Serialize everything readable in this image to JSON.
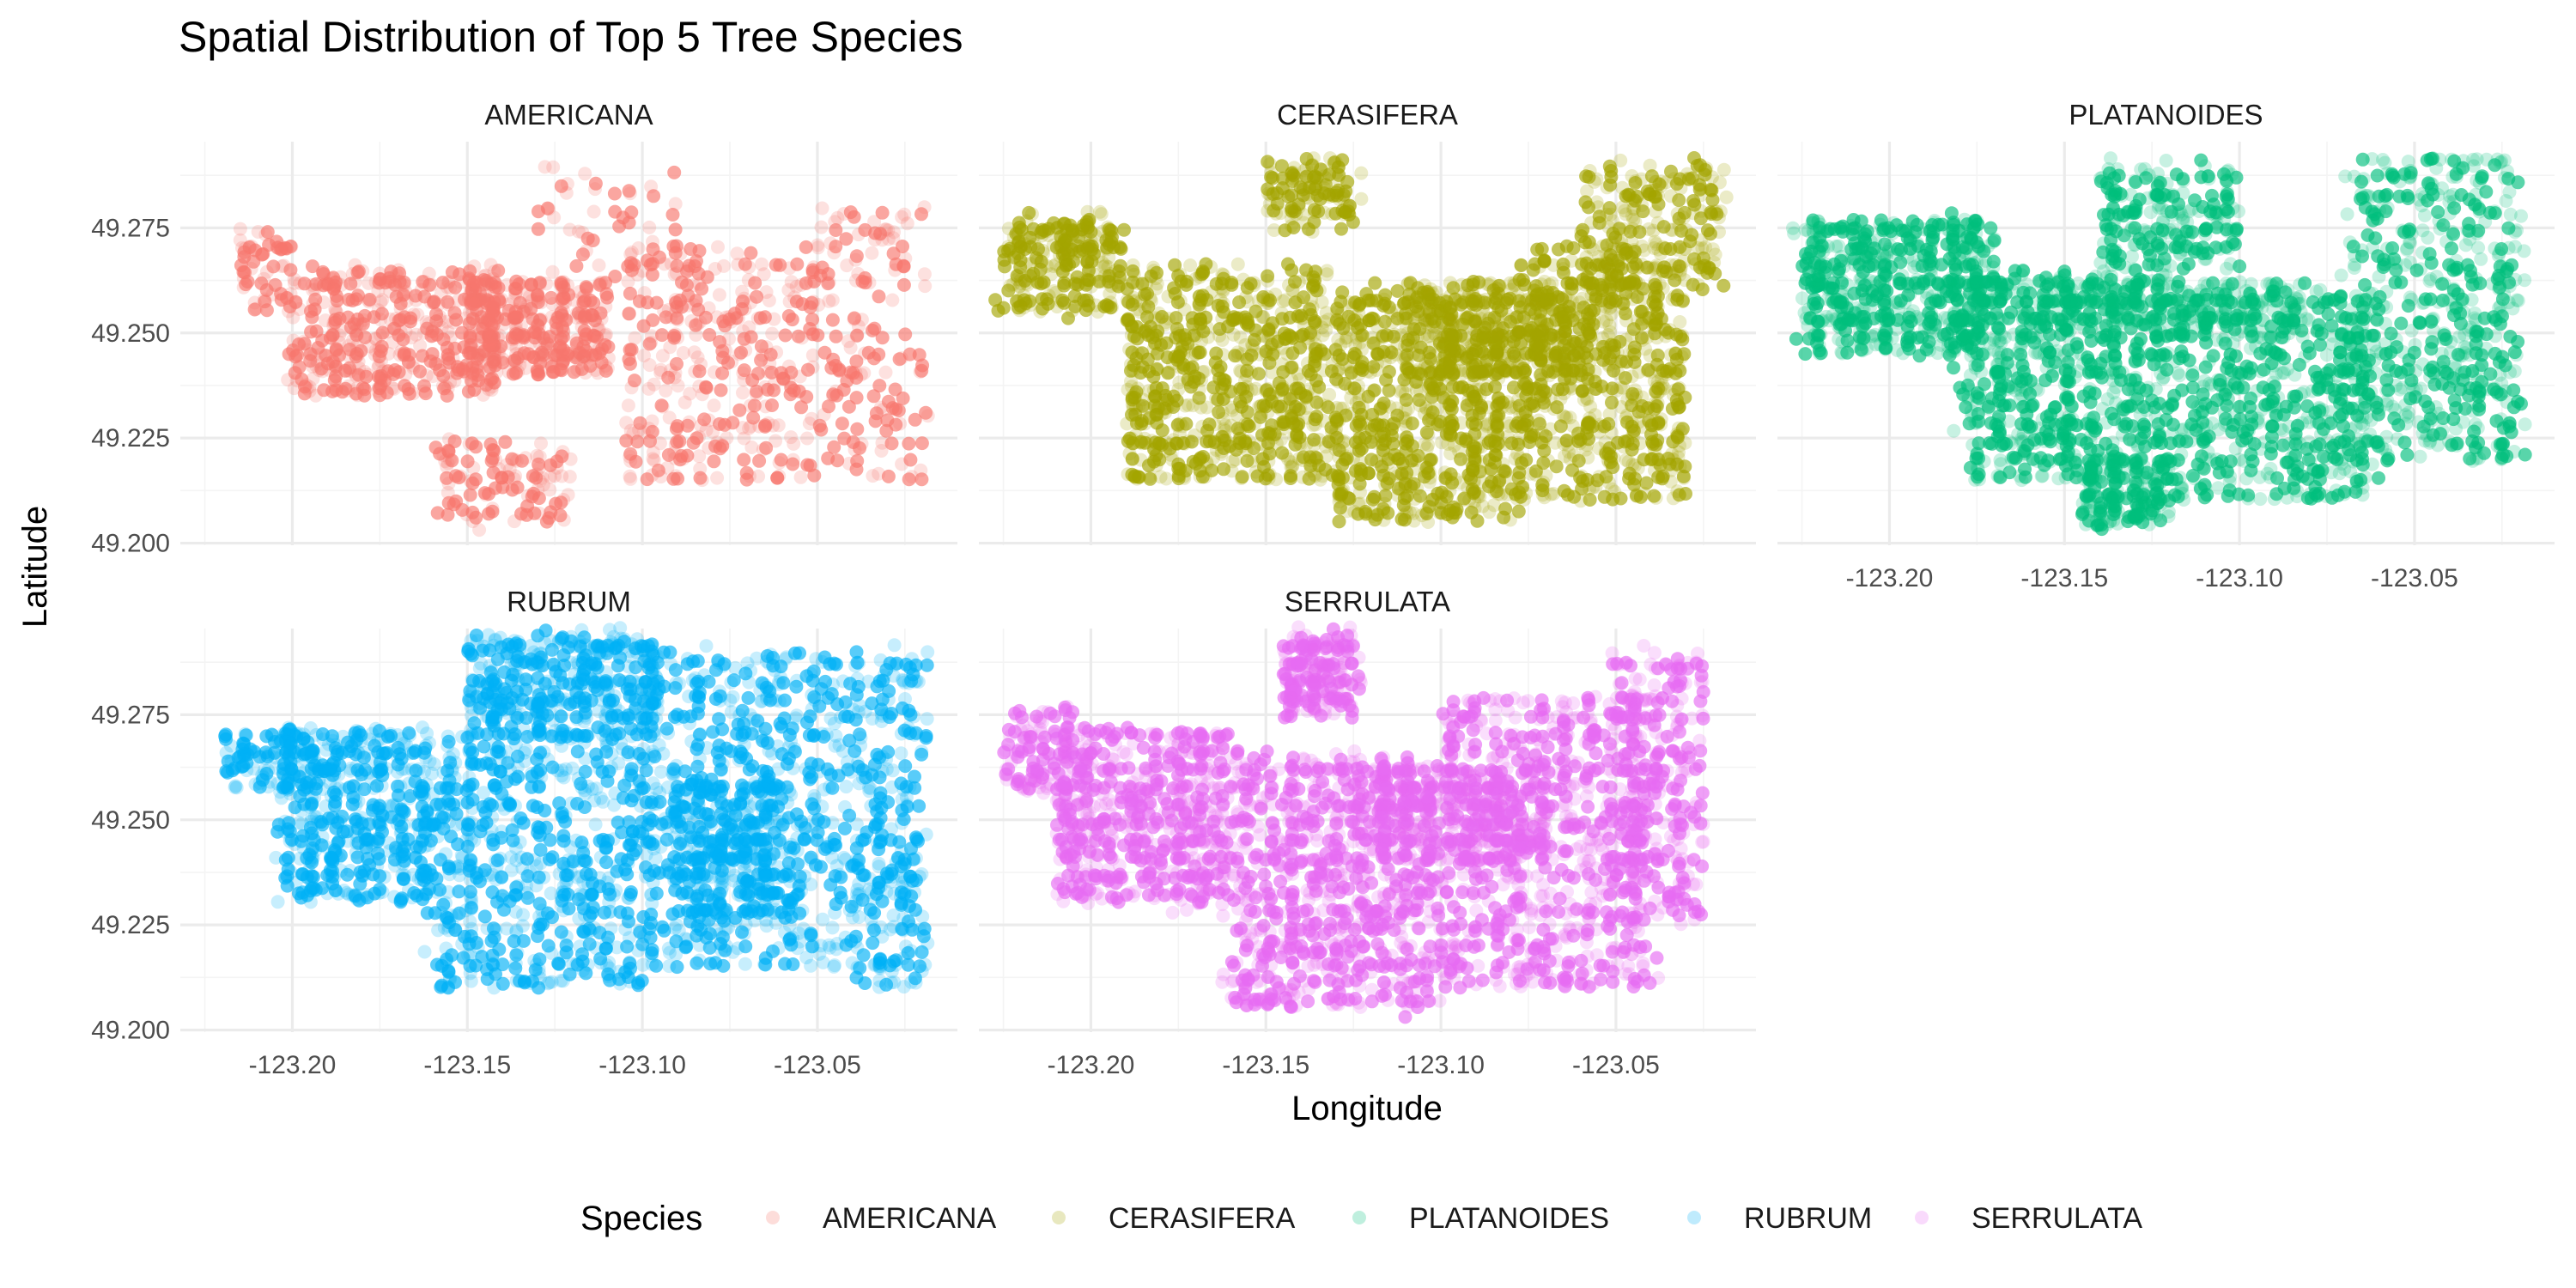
{
  "chart_data": {
    "type": "scatter",
    "title": "Spatial Distribution of Top 5 Tree Species",
    "xlabel": "Longitude",
    "ylabel": "Latitude",
    "xlim": [
      -123.232,
      -123.01
    ],
    "ylim": [
      49.1995,
      49.2955
    ],
    "x_ticks": [
      -123.2,
      -123.15,
      -123.1,
      -123.05
    ],
    "x_tick_labels": [
      "-123.20",
      "-123.15",
      "-123.10",
      "-123.05"
    ],
    "y_ticks": [
      49.2,
      49.225,
      49.25,
      49.275
    ],
    "y_tick_labels": [
      "49.200",
      "49.225",
      "49.250",
      "49.275"
    ],
    "grid": true,
    "facet_layout": {
      "rows": 2,
      "cols": 3
    },
    "legend": {
      "title": "Species",
      "position": "bottom"
    },
    "series": [
      {
        "name": "AMERICANA",
        "color": "#F8766D",
        "point_count": 1500,
        "regions": [
          [
            -123.2,
            -123.14,
            49.235,
            49.265,
            0.28
          ],
          [
            -123.15,
            -123.11,
            49.24,
            49.262,
            0.22
          ],
          [
            -123.105,
            -123.05,
            49.215,
            49.27,
            0.22
          ],
          [
            -123.05,
            -123.02,
            49.215,
            49.28,
            0.12
          ],
          [
            -123.16,
            -123.12,
            49.205,
            49.225,
            0.08
          ],
          [
            -123.215,
            -123.2,
            49.255,
            49.275,
            0.04
          ],
          [
            -123.13,
            -123.09,
            49.262,
            49.29,
            0.04
          ]
        ]
      },
      {
        "name": "CERASIFERA",
        "color": "#A3A500",
        "point_count": 3000,
        "regions": [
          [
            -123.19,
            -123.13,
            49.215,
            49.265,
            0.24
          ],
          [
            -123.13,
            -123.08,
            49.205,
            49.26,
            0.24
          ],
          [
            -123.08,
            -123.03,
            49.21,
            49.27,
            0.22
          ],
          [
            -123.06,
            -123.02,
            49.26,
            49.29,
            0.08
          ],
          [
            -123.225,
            -123.19,
            49.255,
            49.277,
            0.08
          ],
          [
            -123.15,
            -123.125,
            49.275,
            49.292,
            0.04
          ],
          [
            -123.11,
            -123.06,
            49.24,
            49.262,
            0.1
          ]
        ]
      },
      {
        "name": "PLATANOIDES",
        "color": "#00BF7D",
        "point_count": 3000,
        "regions": [
          [
            -123.225,
            -123.17,
            49.245,
            49.277,
            0.2
          ],
          [
            -123.18,
            -123.12,
            49.215,
            49.265,
            0.22
          ],
          [
            -123.12,
            -123.06,
            49.21,
            49.26,
            0.2
          ],
          [
            -123.07,
            -123.02,
            49.22,
            49.292,
            0.16
          ],
          [
            -123.145,
            -123.12,
            49.204,
            49.22,
            0.06
          ],
          [
            -123.14,
            -123.1,
            49.265,
            49.29,
            0.08
          ],
          [
            -123.16,
            -123.08,
            49.25,
            49.262,
            0.08
          ]
        ]
      },
      {
        "name": "RUBRUM",
        "color": "#00B0F6",
        "point_count": 2800,
        "regions": [
          [
            -123.205,
            -123.16,
            49.23,
            49.272,
            0.16
          ],
          [
            -123.16,
            -123.1,
            49.21,
            49.27,
            0.22
          ],
          [
            -123.1,
            -123.04,
            49.215,
            49.29,
            0.22
          ],
          [
            -123.15,
            -123.095,
            49.27,
            49.294,
            0.14
          ],
          [
            -123.04,
            -123.02,
            49.21,
            49.29,
            0.1
          ],
          [
            -123.22,
            -123.19,
            49.258,
            49.272,
            0.04
          ],
          [
            -123.09,
            -123.06,
            49.225,
            49.26,
            0.12
          ]
        ]
      },
      {
        "name": "SERRULATA",
        "color": "#E76BF3",
        "point_count": 3200,
        "regions": [
          [
            -123.21,
            -123.16,
            49.23,
            49.272,
            0.2
          ],
          [
            -123.16,
            -123.1,
            49.205,
            49.265,
            0.26
          ],
          [
            -123.1,
            -123.04,
            49.21,
            49.28,
            0.24
          ],
          [
            -123.145,
            -123.125,
            49.275,
            49.294,
            0.06
          ],
          [
            -123.05,
            -123.025,
            49.225,
            49.29,
            0.08
          ],
          [
            -123.225,
            -123.205,
            49.255,
            49.277,
            0.04
          ],
          [
            -123.12,
            -123.07,
            49.24,
            49.262,
            0.12
          ]
        ]
      }
    ]
  }
}
